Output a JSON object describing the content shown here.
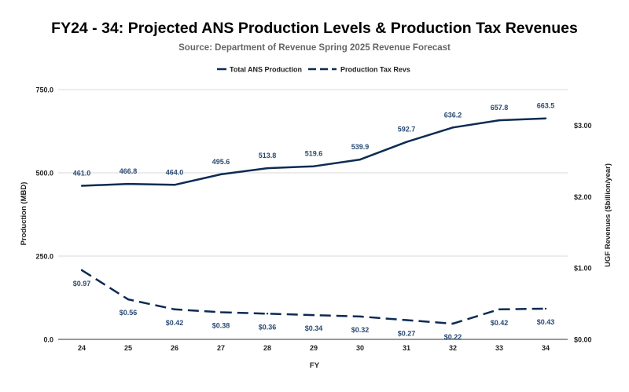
{
  "chart_data": {
    "type": "line",
    "title": "FY24 - 34: Projected ANS Production Levels & Production Tax Revenues",
    "subtitle": "Source: Department of Revenue Spring 2025 Revenue Forecast",
    "xlabel": "FY",
    "ylabel_left": "Production (MBD)",
    "ylabel_right": "UGF Revenues ($billion/year)",
    "categories": [
      "24",
      "25",
      "26",
      "27",
      "28",
      "29",
      "30",
      "31",
      "32",
      "33",
      "34"
    ],
    "ylim_left": [
      0,
      750
    ],
    "yticks_left": [
      "0.0",
      "250.0",
      "500.0",
      "750.0"
    ],
    "ylim_right": [
      0,
      3.5
    ],
    "yticks_right": [
      "$0.00",
      "$1.00",
      "$2.00",
      "$3.00"
    ],
    "grid": true,
    "legend_position": "top-center",
    "series": [
      {
        "name": "Total ANS Production",
        "axis": "left",
        "style": "solid",
        "color": "#0d2b53",
        "values": [
          461.0,
          466.8,
          464.0,
          495.6,
          513.8,
          519.6,
          539.9,
          592.7,
          636.2,
          657.8,
          663.5
        ],
        "labels": [
          "461.0",
          "466.8",
          "464.0",
          "495.6",
          "513.8",
          "519.6",
          "539.9",
          "592.7",
          "636.2",
          "657.8",
          "663.5"
        ]
      },
      {
        "name": "Production Tax Revs",
        "axis": "right",
        "style": "dashed",
        "color": "#0d2b53",
        "values": [
          0.97,
          0.56,
          0.42,
          0.38,
          0.36,
          0.34,
          0.32,
          0.27,
          0.22,
          0.42,
          0.43
        ],
        "labels": [
          "$0.97",
          "$0.56",
          "$0.42",
          "$0.38",
          "$0.36",
          "$0.34",
          "$0.32",
          "$0.27",
          "$0.22",
          "$0.42",
          "$0.43"
        ]
      }
    ]
  }
}
